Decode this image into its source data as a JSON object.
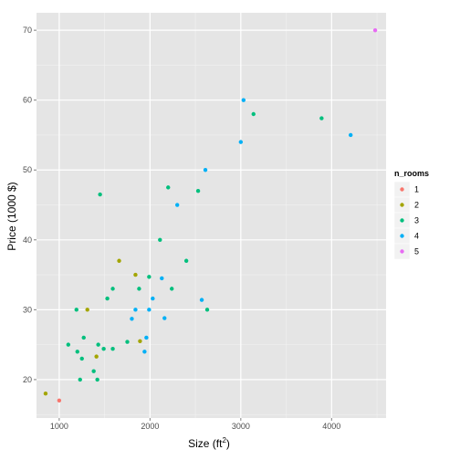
{
  "chart_data": {
    "type": "scatter",
    "xlabel_main": "Size (ft",
    "xlabel_sup": "2",
    "xlabel_close": ")",
    "ylabel": "Price (1000 $)",
    "xlim": [
      750,
      4600
    ],
    "ylim": [
      14.5,
      72.5
    ],
    "x_ticks": [
      1000,
      2000,
      3000,
      4000
    ],
    "x_tick_labels": [
      "1000",
      "2000",
      "3000",
      "4000"
    ],
    "y_ticks": [
      20,
      30,
      40,
      50,
      60,
      70
    ],
    "y_tick_labels": [
      "20",
      "30",
      "40",
      "50",
      "60",
      "70"
    ],
    "grid": true,
    "legend": {
      "title": "n_rooms",
      "placement": "right",
      "entries": [
        {
          "label": "1",
          "color": "#F8766D"
        },
        {
          "label": "2",
          "color": "#A3A500"
        },
        {
          "label": "3",
          "color": "#00BF7D"
        },
        {
          "label": "4",
          "color": "#00B0F6"
        },
        {
          "label": "5",
          "color": "#E76BF3"
        }
      ]
    },
    "series": [
      {
        "legend_index": 0,
        "points": [
          [
            1000,
            17.0
          ]
        ]
      },
      {
        "legend_index": 1,
        "points": [
          [
            850,
            18.0
          ],
          [
            1310,
            30.0
          ],
          [
            1410,
            23.3
          ],
          [
            1660,
            37.0
          ],
          [
            1840,
            35.0
          ],
          [
            1890,
            25.5
          ]
        ]
      },
      {
        "legend_index": 2,
        "points": [
          [
            1100,
            25.0
          ],
          [
            1190,
            30.0
          ],
          [
            1200,
            24.0
          ],
          [
            1230,
            20.0
          ],
          [
            1250,
            23.0
          ],
          [
            1270,
            26.0
          ],
          [
            1380,
            21.2
          ],
          [
            1420,
            20.0
          ],
          [
            1430,
            25.0
          ],
          [
            1450,
            46.5
          ],
          [
            1490,
            24.4
          ],
          [
            1530,
            31.6
          ],
          [
            1590,
            24.4
          ],
          [
            1590,
            33.0
          ],
          [
            1750,
            25.4
          ],
          [
            1880,
            33.0
          ],
          [
            1990,
            34.7
          ],
          [
            2110,
            40.0
          ],
          [
            2200,
            47.5
          ],
          [
            2240,
            33.0
          ],
          [
            2400,
            37.0
          ],
          [
            2530,
            47.0
          ],
          [
            2630,
            30.0
          ],
          [
            3140,
            58.0
          ],
          [
            3890,
            57.4
          ]
        ]
      },
      {
        "legend_index": 3,
        "points": [
          [
            1800,
            28.7
          ],
          [
            1840,
            30.0
          ],
          [
            1940,
            24.0
          ],
          [
            1960,
            26.0
          ],
          [
            1990,
            30.0
          ],
          [
            2030,
            31.6
          ],
          [
            2130,
            34.5
          ],
          [
            2160,
            28.8
          ],
          [
            2300,
            45.0
          ],
          [
            2570,
            31.4
          ],
          [
            2610,
            50.0
          ],
          [
            3000,
            54.0
          ],
          [
            3030,
            60.0
          ],
          [
            4210,
            55.0
          ]
        ]
      },
      {
        "legend_index": 4,
        "points": [
          [
            4480,
            70.0
          ]
        ]
      }
    ]
  }
}
